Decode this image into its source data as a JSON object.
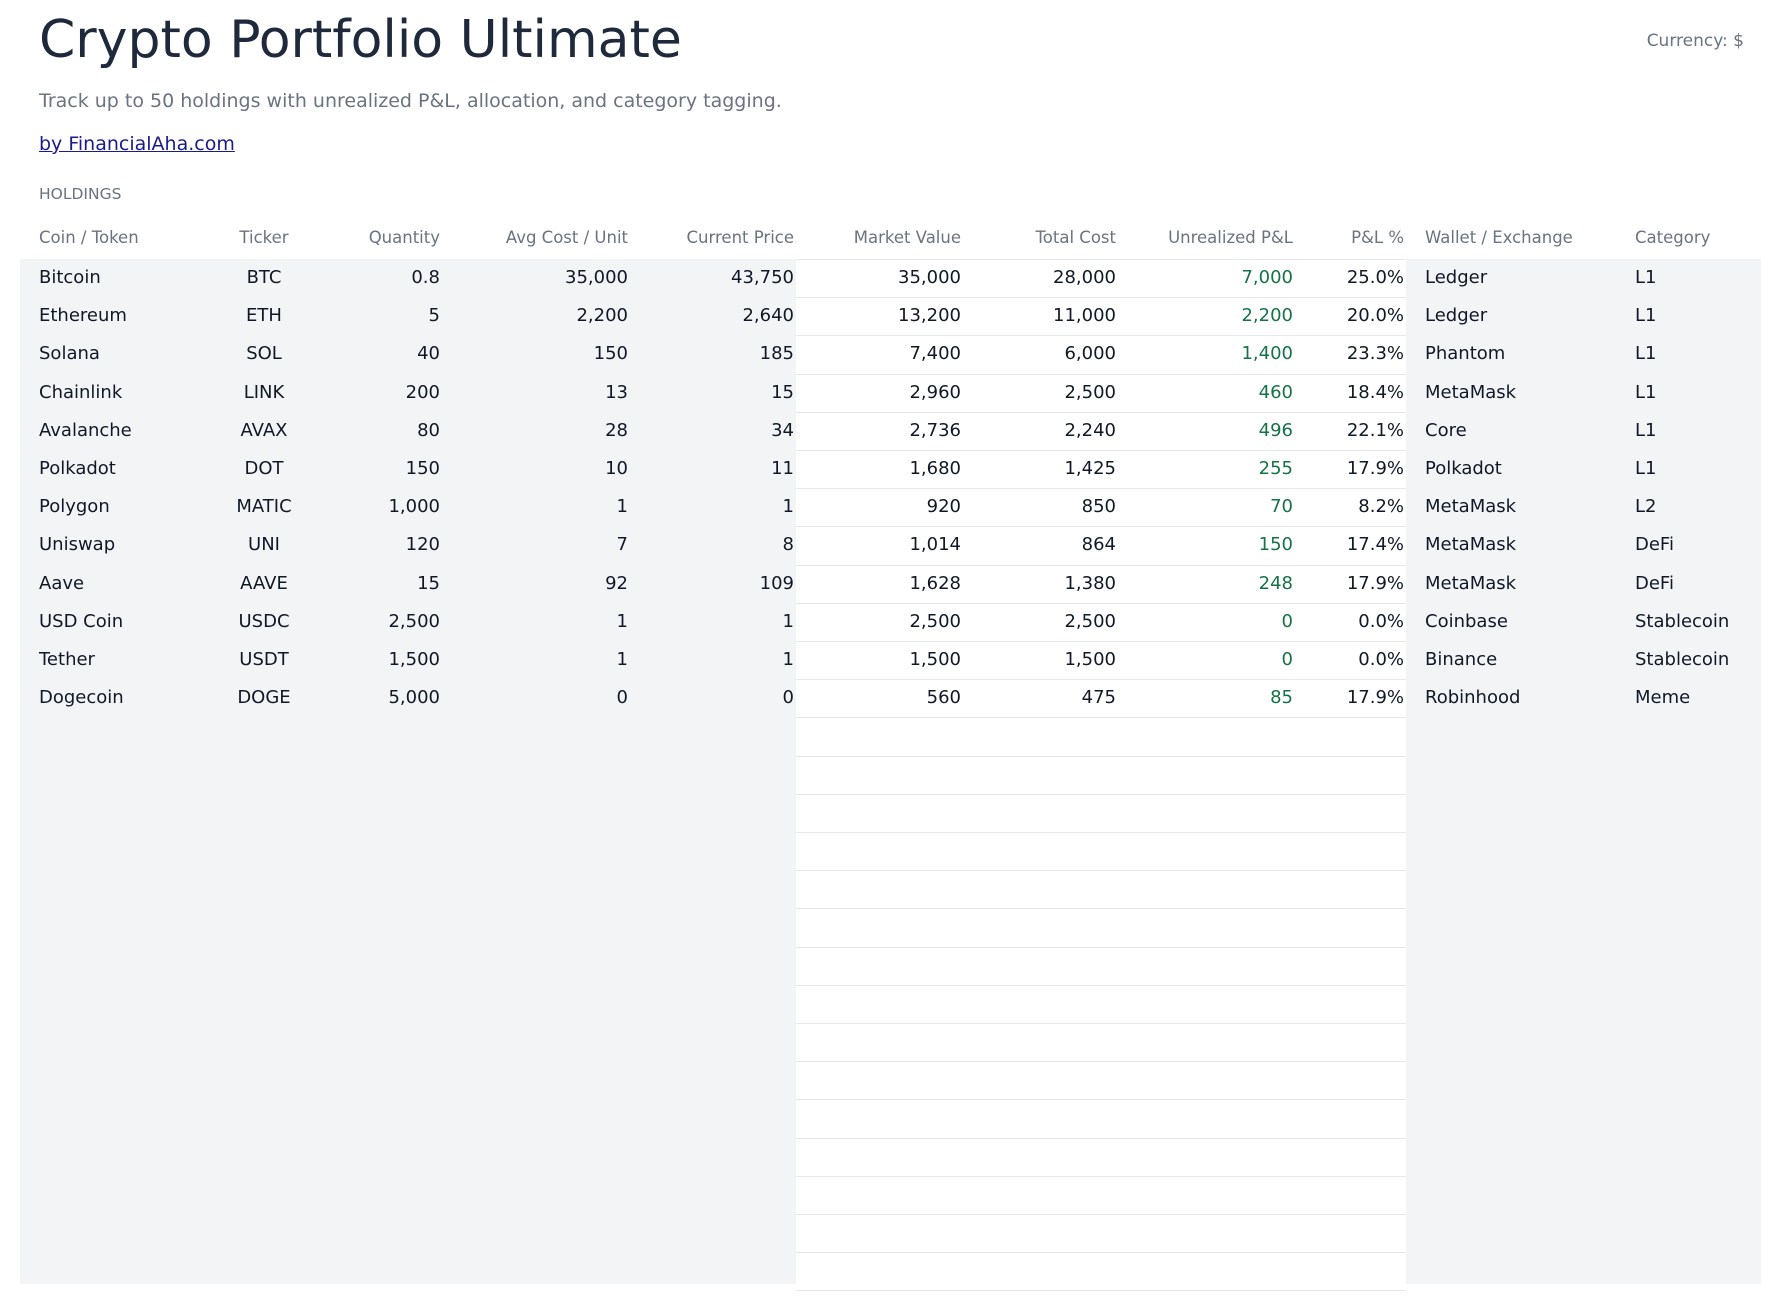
{
  "header": {
    "title": "Crypto Portfolio Ultimate",
    "subtitle": "Track up to 50 holdings with unrealized P&L, allocation, and category tagging.",
    "link": "by FinancialAha.com",
    "currency": "Currency: $"
  },
  "section": "HOLDINGS",
  "table": {
    "columns": [
      "Coin / Token",
      "Ticker",
      "Quantity",
      "Avg Cost / Unit",
      "Current Price",
      "Market Value",
      "Total Cost",
      "Unrealized P&L",
      "P&L %",
      "Wallet / Exchange",
      "Category"
    ],
    "rows": [
      [
        "Bitcoin",
        "BTC",
        "0.8",
        "35,000",
        "43,750",
        "35,000",
        "28,000",
        "7,000",
        "25.0%",
        "Ledger",
        "L1"
      ],
      [
        "Ethereum",
        "ETH",
        "5",
        "2,200",
        "2,640",
        "13,200",
        "11,000",
        "2,200",
        "20.0%",
        "Ledger",
        "L1"
      ],
      [
        "Solana",
        "SOL",
        "40",
        "150",
        "185",
        "7,400",
        "6,000",
        "1,400",
        "23.3%",
        "Phantom",
        "L1"
      ],
      [
        "Chainlink",
        "LINK",
        "200",
        "13",
        "15",
        "2,960",
        "2,500",
        "460",
        "18.4%",
        "MetaMask",
        "L1"
      ],
      [
        "Avalanche",
        "AVAX",
        "80",
        "28",
        "34",
        "2,736",
        "2,240",
        "496",
        "22.1%",
        "Core",
        "L1"
      ],
      [
        "Polkadot",
        "DOT",
        "150",
        "10",
        "11",
        "1,680",
        "1,425",
        "255",
        "17.9%",
        "Polkadot",
        "L1"
      ],
      [
        "Polygon",
        "MATIC",
        "1,000",
        "1",
        "1",
        "920",
        "850",
        "70",
        "8.2%",
        "MetaMask",
        "L2"
      ],
      [
        "Uniswap",
        "UNI",
        "120",
        "7",
        "8",
        "1,014",
        "864",
        "150",
        "17.4%",
        "MetaMask",
        "DeFi"
      ],
      [
        "Aave",
        "AAVE",
        "15",
        "92",
        "109",
        "1,628",
        "1,380",
        "248",
        "17.9%",
        "MetaMask",
        "DeFi"
      ],
      [
        "USD Coin",
        "USDC",
        "2,500",
        "1",
        "1",
        "2,500",
        "2,500",
        "0",
        "0.0%",
        "Coinbase",
        "Stablecoin"
      ],
      [
        "Tether",
        "USDT",
        "1,500",
        "1",
        "1",
        "1,500",
        "1,500",
        "0",
        "0.0%",
        "Binance",
        "Stablecoin"
      ],
      [
        "Dogecoin",
        "DOGE",
        "5,000",
        "0",
        "0",
        "560",
        "475",
        "85",
        "17.9%",
        "Robinhood",
        "Meme"
      ]
    ]
  }
}
